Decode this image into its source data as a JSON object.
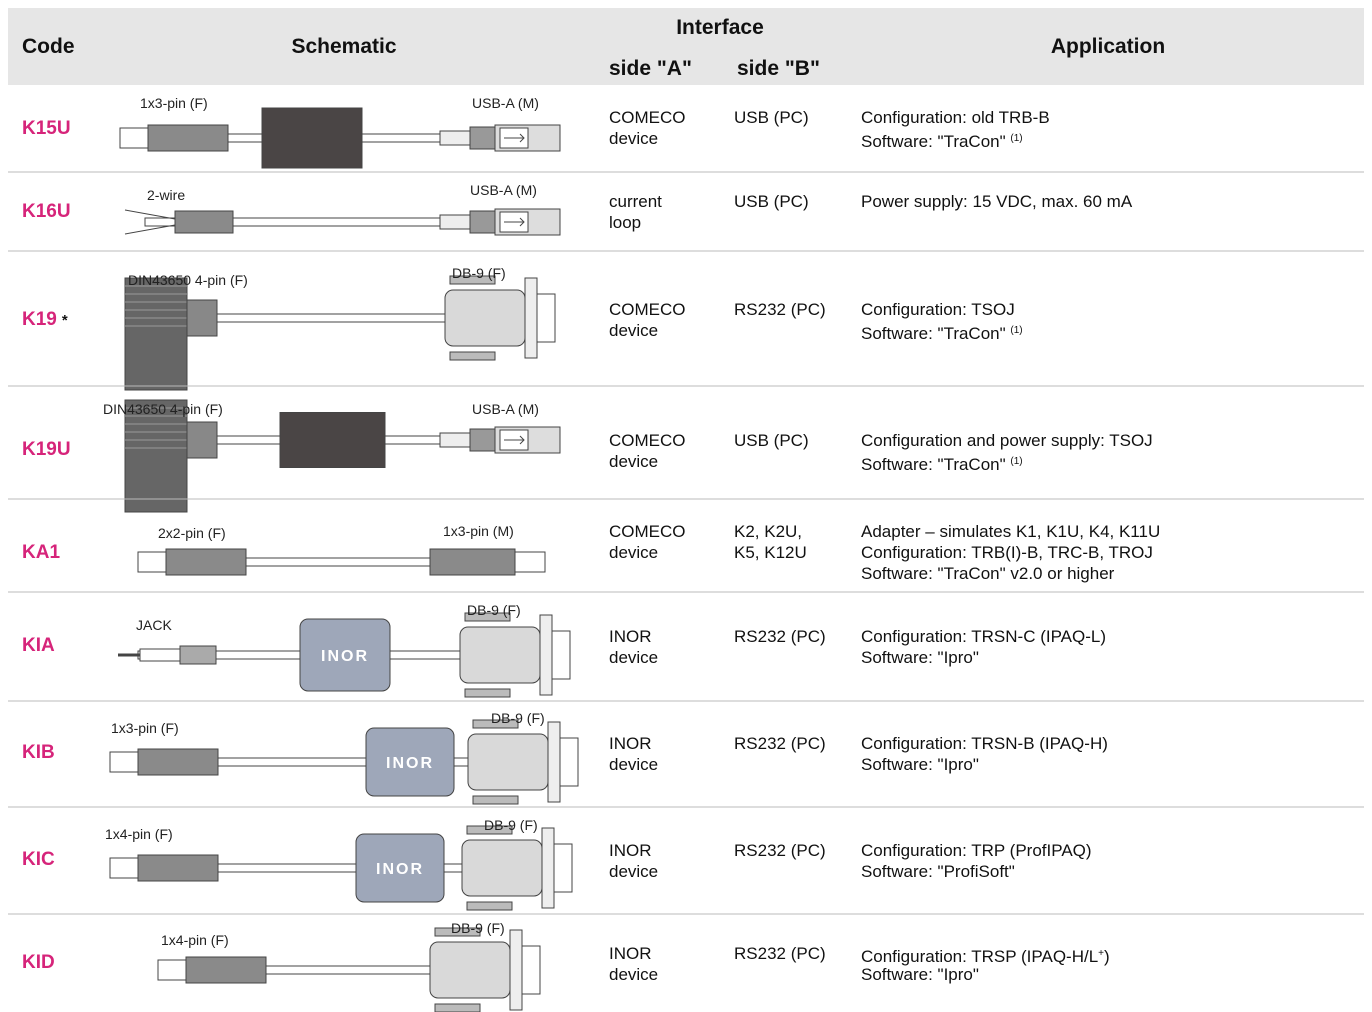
{
  "header": {
    "code": "Code",
    "schematic": "Schematic",
    "interface": "Interface",
    "side_a": "side \"A\"",
    "side_b": "side \"B\"",
    "application": "Application"
  },
  "rows": [
    {
      "code": "K15U",
      "labels": [
        "1x3-pin (F)",
        "USB-A (M)"
      ],
      "side_a": [
        "COMECO",
        "device"
      ],
      "side_b": [
        "USB (PC)"
      ],
      "application": [
        {
          "text": "Configuration: old TRB-B"
        },
        {
          "text": "Software: \"TraCon\" ",
          "sup": "(1)"
        }
      ]
    },
    {
      "code": "K16U",
      "labels": [
        "2-wire",
        "USB-A (M)"
      ],
      "side_a": [
        "current",
        "loop"
      ],
      "side_b": [
        "USB (PC)"
      ],
      "application": [
        {
          "text": "Power supply: 15 VDC, max. 60 mA"
        }
      ]
    },
    {
      "code": "K19",
      "mark": "*",
      "labels": [
        "DIN43650 4-pin (F)",
        "DB-9 (F)"
      ],
      "side_a": [
        "COMECO",
        "device"
      ],
      "side_b": [
        "RS232 (PC)"
      ],
      "application": [
        {
          "text": "Configuration: TSOJ"
        },
        {
          "text": "Software: \"TraCon\" ",
          "sup": "(1)"
        }
      ]
    },
    {
      "code": "K19U",
      "labels": [
        "DIN43650 4-pin (F)",
        "USB-A (M)"
      ],
      "side_a": [
        "COMECO",
        "device"
      ],
      "side_b": [
        "USB (PC)"
      ],
      "application": [
        {
          "text": "Configuration and power supply: TSOJ"
        },
        {
          "text": "Software: \"TraCon\" ",
          "sup": "(1)"
        }
      ]
    },
    {
      "code": "KA1",
      "labels": [
        "2x2-pin (F)",
        "1x3-pin (M)"
      ],
      "side_a": [
        "COMECO",
        "device"
      ],
      "side_b": [
        "K2, K2U,",
        "K5, K12U"
      ],
      "application": [
        {
          "text": "Adapter – simulates K1, K1U, K4, K11U"
        },
        {
          "text": "Configuration: TRB(I)-B, TRC-B, TROJ"
        },
        {
          "text": "Software: \"TraCon\" v2.0 or higher"
        }
      ]
    },
    {
      "code": "KIA",
      "labels": [
        "JACK",
        "DB-9 (F)"
      ],
      "badge": "INOR",
      "side_a": [
        "INOR",
        "device"
      ],
      "side_b": [
        "RS232 (PC)"
      ],
      "application": [
        {
          "text": "Configuration: TRSN-C (IPAQ-L)"
        },
        {
          "text": "Software: \"Ipro\""
        }
      ]
    },
    {
      "code": "KIB",
      "labels": [
        "1x3-pin (F)",
        "DB-9 (F)"
      ],
      "badge": "INOR",
      "side_a": [
        "INOR",
        "device"
      ],
      "side_b": [
        "RS232 (PC)"
      ],
      "application": [
        {
          "text": "Configuration: TRSN-B (IPAQ-H)"
        },
        {
          "text": "Software: \"Ipro\""
        }
      ]
    },
    {
      "code": "KIC",
      "labels": [
        "1x4-pin (F)",
        "DB-9 (F)"
      ],
      "badge": "INOR",
      "side_a": [
        "INOR",
        "device"
      ],
      "side_b": [
        "RS232 (PC)"
      ],
      "application": [
        {
          "text": "Configuration: TRP (ProfIPAQ)"
        },
        {
          "text": "Software: \"ProfiSoft\""
        }
      ]
    },
    {
      "code": "KID",
      "labels": [
        "1x4-pin (F)",
        "DB-9 (F)"
      ],
      "side_a": [
        "INOR",
        "device"
      ],
      "side_b": [
        "RS232 (PC)"
      ],
      "application": [
        {
          "text": "Configuration: TRSP (IPAQ-H/L",
          "sup": "+",
          "after": ")"
        },
        {
          "text": "Software: \"Ipro\""
        }
      ]
    }
  ]
}
